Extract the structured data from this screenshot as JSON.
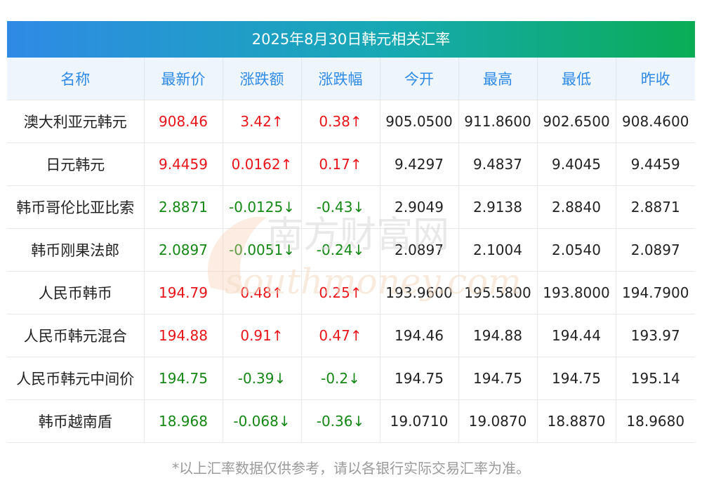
{
  "title": "2025年8月30日韩元相关汇率",
  "headers": [
    "名称",
    "最新价",
    "涨跌额",
    "涨跌幅",
    "今开",
    "最高",
    "最低",
    "昨收"
  ],
  "rows": [
    {
      "name": "澳大利亚元韩元",
      "latest": "908.46",
      "change": "3.42↑",
      "pct": "0.38↑",
      "open": "905.0500",
      "high": "911.8600",
      "low": "902.6500",
      "prev": "908.4600",
      "dir": "up"
    },
    {
      "name": "日元韩元",
      "latest": "9.4459",
      "change": "0.0162↑",
      "pct": "0.17↑",
      "open": "9.4297",
      "high": "9.4837",
      "low": "9.4045",
      "prev": "9.4459",
      "dir": "up"
    },
    {
      "name": "韩币哥伦比亚比索",
      "latest": "2.8871",
      "change": "-0.0125↓",
      "pct": "-0.43↓",
      "open": "2.9049",
      "high": "2.9138",
      "low": "2.8840",
      "prev": "2.8871",
      "dir": "down"
    },
    {
      "name": "韩币刚果法郎",
      "latest": "2.0897",
      "change": "-0.0051↓",
      "pct": "-0.24↓",
      "open": "2.0897",
      "high": "2.1004",
      "low": "2.0540",
      "prev": "2.0897",
      "dir": "down"
    },
    {
      "name": "人民币韩币",
      "latest": "194.79",
      "change": "0.48↑",
      "pct": "0.25↑",
      "open": "193.9600",
      "high": "195.5800",
      "low": "193.8000",
      "prev": "194.7900",
      "dir": "up"
    },
    {
      "name": "人民币韩元混合",
      "latest": "194.88",
      "change": "0.91↑",
      "pct": "0.47↑",
      "open": "194.46",
      "high": "194.88",
      "low": "194.44",
      "prev": "193.97",
      "dir": "up"
    },
    {
      "name": "人民币韩元中间价",
      "latest": "194.75",
      "change": "-0.39↓",
      "pct": "-0.2↓",
      "open": "194.75",
      "high": "194.75",
      "low": "194.75",
      "prev": "195.14",
      "dir": "down"
    },
    {
      "name": "韩币越南盾",
      "latest": "18.968",
      "change": "-0.068↓",
      "pct": "-0.36↓",
      "open": "19.0710",
      "high": "19.0870",
      "low": "18.8870",
      "prev": "18.9680",
      "dir": "down"
    }
  ],
  "footnote": "*以上汇率数据仅供参考，请以各银行实际交易汇率为准。",
  "watermark": {
    "cn": "南方财富网",
    "en": "southmoney.com"
  },
  "colors": {
    "up": "#e8141a",
    "down": "#148714",
    "header_text": "#2f8ae6",
    "header_bg": "#eef5fd",
    "banner_start": "#2f8ae6",
    "banner_end": "#0aad55"
  }
}
